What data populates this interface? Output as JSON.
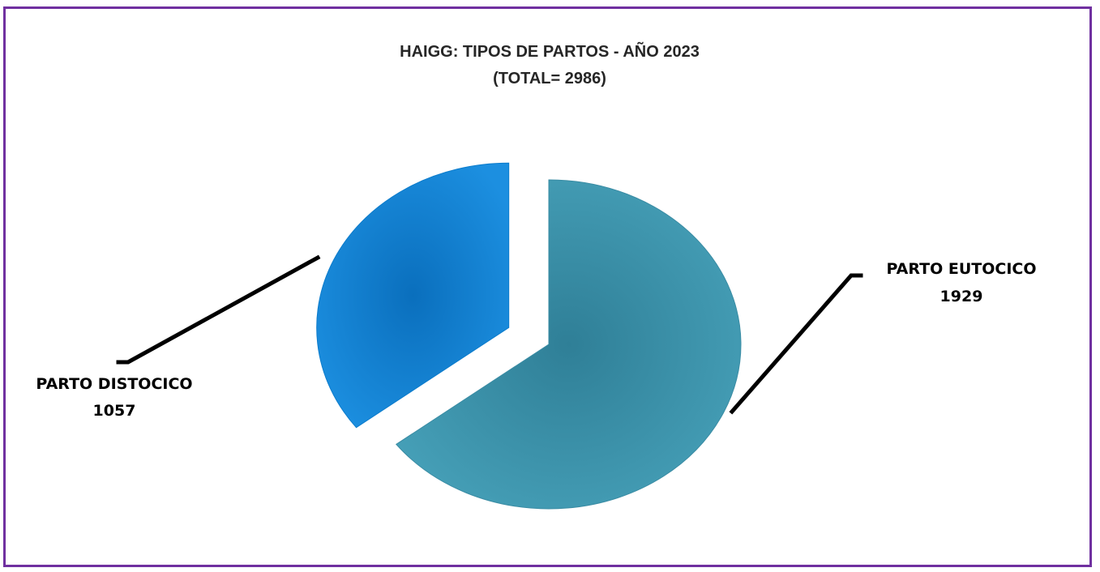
{
  "chart_data": {
    "type": "pie",
    "title": "HAIGG: TIPOS DE PARTOS - AÑO 2023",
    "subtitle": "(TOTAL= 2986)",
    "slices": [
      {
        "label": "PARTO EUTOCICO",
        "value": 1929,
        "color": "#3a8ca4",
        "exploded": false
      },
      {
        "label": "PARTO DISTOCICO",
        "value": 1057,
        "color": "#0c7ccc",
        "exploded": true
      }
    ],
    "legend": "none",
    "data_labels": "category-and-value with leader lines"
  },
  "frame": {
    "border_color": "#7030a0"
  }
}
